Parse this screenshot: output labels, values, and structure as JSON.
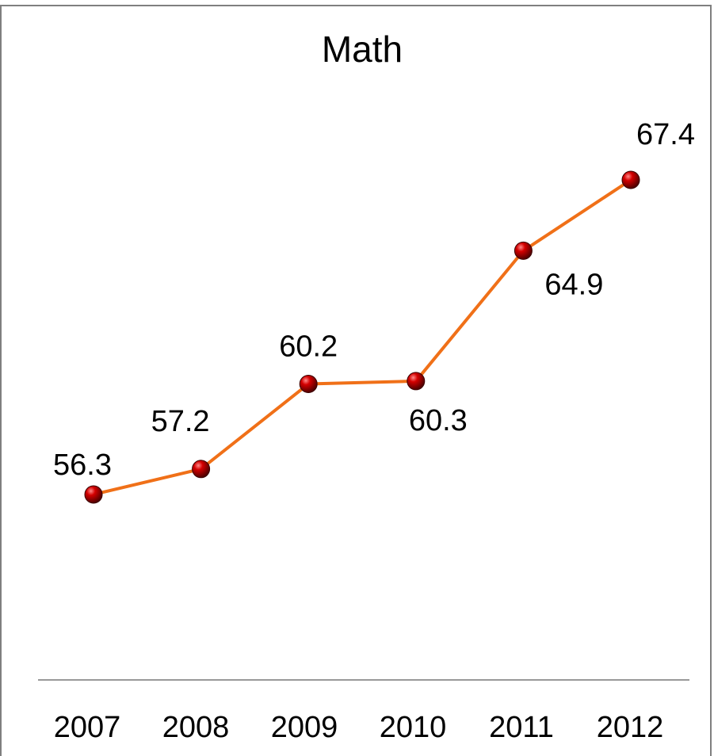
{
  "chart_data": {
    "type": "line",
    "title": "Math",
    "xlabel": "",
    "ylabel": "",
    "categories": [
      "2007",
      "2008",
      "2009",
      "2010",
      "2011",
      "2012"
    ],
    "series": [
      {
        "values": [
          56.3,
          57.2,
          60.2,
          60.3,
          64.9,
          67.4
        ],
        "data_labels": [
          "56.3",
          "57.2",
          "60.2",
          "60.3",
          "64.9",
          "67.4"
        ],
        "line_color": "#f07018",
        "marker_color": "#cc0000"
      }
    ],
    "grid": false,
    "legend": "none",
    "y_axis_visible": false,
    "x_axis_line_color": "#999999"
  }
}
